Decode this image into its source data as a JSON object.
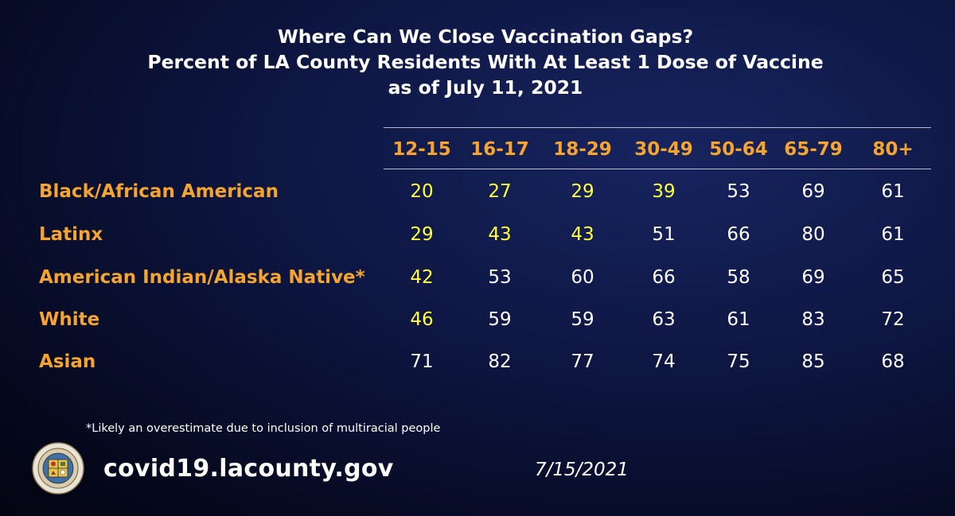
{
  "chart_data": {
    "type": "table",
    "title_lines": [
      "Where Can We Close Vaccination Gaps?",
      "Percent of LA County Residents With At Least 1 Dose of Vaccine",
      "as of July 11, 2021"
    ],
    "columns": [
      "12-15",
      "16-17",
      "18-29",
      "30-49",
      "50-64",
      "65-79",
      "80+"
    ],
    "rows": [
      {
        "label": "Black/African American",
        "values": [
          20,
          27,
          29,
          39,
          53,
          69,
          61
        ]
      },
      {
        "label": "Latinx",
        "values": [
          29,
          43,
          43,
          51,
          66,
          80,
          61
        ]
      },
      {
        "label": "American Indian/Alaska Native*",
        "values": [
          42,
          53,
          60,
          66,
          58,
          69,
          65
        ]
      },
      {
        "label": "White",
        "values": [
          46,
          59,
          59,
          63,
          61,
          83,
          72
        ]
      },
      {
        "label": "Asian",
        "values": [
          71,
          82,
          77,
          74,
          75,
          85,
          68
        ]
      }
    ],
    "highlight_below": 50,
    "colors": {
      "header_text": "#f5a42f",
      "row_label_text": "#f5a42f",
      "value_text": "#ffffff",
      "highlight_text": "#ffff3c",
      "background": "#0d1540"
    }
  },
  "footer": {
    "footnote": "*Likely an overestimate due to inclusion of multiracial people",
    "website": "covid19.lacounty.gov",
    "date": "7/15/2021",
    "seal_icon": "county-seal-icon"
  }
}
